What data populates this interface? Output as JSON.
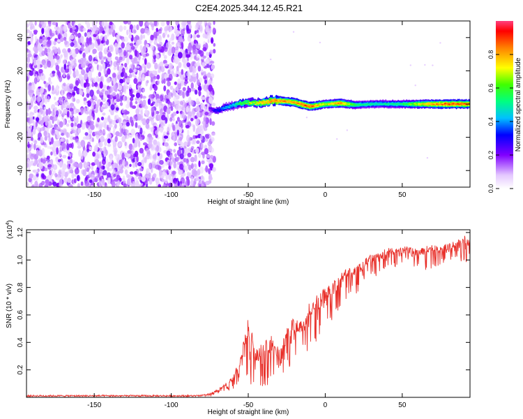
{
  "title": "C2E4.2025.344.12.45.R21",
  "chart_data": [
    {
      "type": "heatmap",
      "xlabel": "Height of straight line (km)",
      "ylabel": "Frequency (Hz)",
      "xlim": [
        -194,
        94
      ],
      "ylim": [
        -50,
        50
      ],
      "xticks": [
        -150,
        -100,
        -50,
        0,
        50
      ],
      "yticks": [
        -40,
        -20,
        0,
        20,
        40
      ],
      "colorbar": {
        "label": "Normalized spectral amplitude",
        "range": [
          0,
          1
        ],
        "ticks": [
          0.0,
          0.2,
          0.4,
          0.6,
          0.8
        ],
        "tick_labels": [
          "0.0",
          "0.2",
          "0.4",
          "0.6",
          "0.8"
        ]
      },
      "noise_region_x": [
        -194,
        -72
      ],
      "ridge": {
        "x": [
          -75,
          -70,
          -65,
          -60,
          -55,
          -50,
          -45,
          -40,
          -35,
          -30,
          -20,
          -10,
          0,
          10,
          20,
          30,
          40,
          50,
          60,
          70,
          80,
          94
        ],
        "frequency": [
          -3,
          -4,
          -2,
          -1,
          0.5,
          1,
          0.5,
          1,
          2,
          2,
          1,
          -1.5,
          0,
          0.5,
          -0.5,
          0,
          0,
          0,
          0,
          0,
          0,
          0
        ],
        "amplitude": [
          0.25,
          0.35,
          0.45,
          0.5,
          0.6,
          0.7,
          0.75,
          0.85,
          0.9,
          0.9,
          0.9,
          0.95,
          0.75,
          0.9,
          0.6,
          0.55,
          0.55,
          0.6,
          0.75,
          0.9,
          0.95,
          0.95
        ]
      }
    },
    {
      "type": "line",
      "xlabel": "Height of straight line (km)",
      "ylabel": "SNR (10 * v/v)",
      "y_scale_label": "(x10",
      "y_scale_exp": "4",
      "y_scale_close": ")",
      "xlim": [
        -194,
        94
      ],
      "ylim": [
        0,
        1.22
      ],
      "xticks": [
        -150,
        -100,
        -50,
        0,
        50
      ],
      "yticks": [
        0.2,
        0.4,
        0.6,
        0.8,
        1.0,
        1.2
      ],
      "ytick_labels": [
        "0.2",
        "0.4",
        "0.6",
        "0.8",
        "1.0",
        "1.2"
      ],
      "color": "#e8302a",
      "envelope": {
        "x": [
          -194,
          -80,
          -75,
          -70,
          -65,
          -60,
          -55,
          -50,
          -45,
          -40,
          -35,
          -30,
          -25,
          -20,
          -15,
          -10,
          -5,
          0,
          5,
          10,
          15,
          20,
          25,
          30,
          35,
          40,
          45,
          50,
          55,
          60,
          65,
          70,
          75,
          80,
          85,
          94
        ],
        "upper": [
          0.02,
          0.02,
          0.03,
          0.06,
          0.1,
          0.15,
          0.3,
          0.6,
          0.35,
          0.4,
          0.45,
          0.35,
          0.5,
          0.6,
          0.55,
          0.7,
          0.75,
          0.8,
          0.85,
          0.9,
          0.95,
          0.95,
          1.0,
          1.05,
          1.05,
          1.1,
          1.08,
          1.1,
          1.1,
          1.08,
          1.1,
          1.12,
          1.1,
          1.12,
          1.15,
          1.2
        ],
        "lower": [
          0.0,
          0.0,
          0.0,
          0.02,
          0.04,
          0.05,
          0.08,
          0.1,
          0.05,
          0.08,
          0.1,
          0.12,
          0.2,
          0.25,
          0.3,
          0.35,
          0.4,
          0.45,
          0.55,
          0.6,
          0.7,
          0.75,
          0.8,
          0.85,
          0.9,
          0.95,
          0.95,
          0.95,
          0.95,
          0.95,
          0.9,
          0.95,
          0.95,
          1.0,
          1.0,
          0.95
        ]
      }
    }
  ]
}
